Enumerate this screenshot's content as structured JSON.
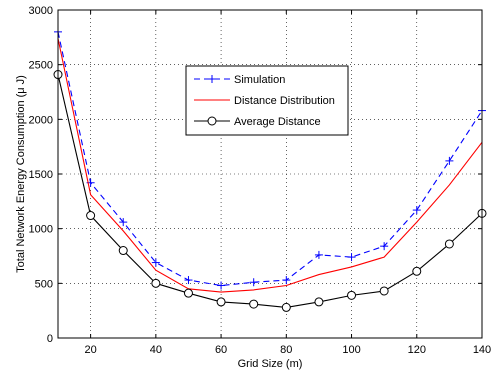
{
  "chart_data": {
    "type": "line",
    "xlabel": "Grid Size (m)",
    "ylabel": "Total Network Energy Consumption (μ J)",
    "xlim": [
      10,
      140
    ],
    "ylim": [
      0,
      3000
    ],
    "xticks": [
      20,
      40,
      60,
      80,
      100,
      120,
      140
    ],
    "yticks": [
      0,
      500,
      1000,
      1500,
      2000,
      2500,
      3000
    ],
    "xtick_labels": [
      "20",
      "40",
      "60",
      "80",
      "100",
      "120",
      "140"
    ],
    "ytick_labels": [
      "0",
      "500",
      "1000",
      "1500",
      "2000",
      "2500",
      "3000"
    ],
    "grid": true,
    "legend_position": "top-center",
    "series": [
      {
        "name": "Simulation",
        "color": "#0000ff",
        "line_style": "dashed",
        "marker": "plus",
        "x": [
          10,
          20,
          30,
          40,
          50,
          60,
          70,
          80,
          90,
          100,
          110,
          120,
          130,
          140
        ],
        "y": [
          2800,
          1420,
          1060,
          690,
          530,
          480,
          510,
          530,
          760,
          740,
          840,
          1170,
          1620,
          2080
        ]
      },
      {
        "name": "Distance Distribution",
        "color": "#ff0000",
        "line_style": "solid",
        "marker": "none",
        "x": [
          10,
          20,
          30,
          40,
          50,
          60,
          70,
          80,
          90,
          100,
          110,
          120,
          130,
          140
        ],
        "y": [
          2740,
          1310,
          980,
          620,
          450,
          420,
          440,
          480,
          580,
          650,
          740,
          1060,
          1400,
          1790
        ]
      },
      {
        "name": "Average Distance",
        "color": "#000000",
        "line_style": "solid",
        "marker": "circle",
        "x": [
          10,
          20,
          30,
          40,
          50,
          60,
          70,
          80,
          90,
          100,
          110,
          120,
          130,
          140
        ],
        "y": [
          2410,
          1120,
          800,
          500,
          410,
          330,
          310,
          280,
          330,
          390,
          430,
          610,
          860,
          1140
        ]
      }
    ]
  }
}
